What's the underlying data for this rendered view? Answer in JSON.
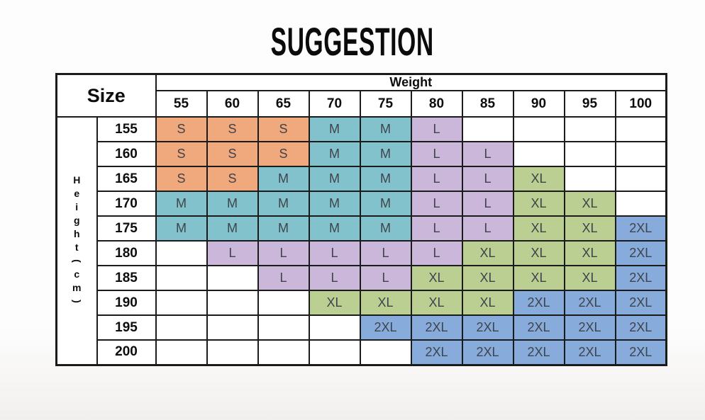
{
  "title": "SUGGESTION",
  "table": {
    "corner_label": "Size",
    "weight_header": "Weight",
    "height_axis_chars": [
      "H",
      "e",
      "i",
      "g",
      "h",
      "t",
      "(",
      "c",
      "m",
      ")"
    ],
    "weight_columns": [
      "55",
      "60",
      "65",
      "70",
      "75",
      "80",
      "85",
      "90",
      "95",
      "100"
    ],
    "rows": [
      {
        "height": "155",
        "sizes": [
          "S",
          "S",
          "S",
          "M",
          "M",
          "L",
          "",
          "",
          "",
          ""
        ]
      },
      {
        "height": "160",
        "sizes": [
          "S",
          "S",
          "S",
          "M",
          "M",
          "L",
          "L",
          "",
          "",
          ""
        ]
      },
      {
        "height": "165",
        "sizes": [
          "S",
          "S",
          "M",
          "M",
          "M",
          "L",
          "L",
          "XL",
          "",
          ""
        ]
      },
      {
        "height": "170",
        "sizes": [
          "M",
          "M",
          "M",
          "M",
          "M",
          "L",
          "L",
          "XL",
          "XL",
          ""
        ]
      },
      {
        "height": "175",
        "sizes": [
          "M",
          "M",
          "M",
          "M",
          "M",
          "L",
          "L",
          "XL",
          "XL",
          "2XL"
        ]
      },
      {
        "height": "180",
        "sizes": [
          "",
          "L",
          "L",
          "L",
          "L",
          "L",
          "XL",
          "XL",
          "XL",
          "2XL"
        ]
      },
      {
        "height": "185",
        "sizes": [
          "",
          "",
          "L",
          "L",
          "L",
          "XL",
          "XL",
          "XL",
          "XL",
          "2XL"
        ]
      },
      {
        "height": "190",
        "sizes": [
          "",
          "",
          "",
          "XL",
          "XL",
          "XL",
          "XL",
          "2XL",
          "2XL",
          "2XL"
        ]
      },
      {
        "height": "195",
        "sizes": [
          "",
          "",
          "",
          "",
          "2XL",
          "2XL",
          "2XL",
          "2XL",
          "2XL",
          "2XL"
        ]
      },
      {
        "height": "200",
        "sizes": [
          "",
          "",
          "",
          "",
          "",
          "2XL",
          "2XL",
          "2XL",
          "2XL",
          "2XL"
        ]
      }
    ]
  },
  "size_colors": {
    "S": "#f0a97c",
    "M": "#82c2cc",
    "L": "#cab7d9",
    "XL": "#bccf92",
    "2XL": "#87abdb"
  },
  "style_colors": {
    "border": "#1b1b1b",
    "header_text": "#0d0d0d",
    "cell_text": "#3f434b",
    "empty_cell": "#ffffff"
  },
  "chart_data": {
    "type": "table",
    "title": "SUGGESTION",
    "x_header": "Weight",
    "y_header": "Height(cm)",
    "x_values": [
      55,
      60,
      65,
      70,
      75,
      80,
      85,
      90,
      95,
      100
    ],
    "y_values": [
      155,
      160,
      165,
      170,
      175,
      180,
      185,
      190,
      195,
      200
    ],
    "legend": [
      "S",
      "M",
      "L",
      "XL",
      "2XL"
    ],
    "matrix": [
      [
        "S",
        "S",
        "S",
        "M",
        "M",
        "L",
        "",
        "",
        "",
        ""
      ],
      [
        "S",
        "S",
        "S",
        "M",
        "M",
        "L",
        "L",
        "",
        "",
        ""
      ],
      [
        "S",
        "S",
        "M",
        "M",
        "M",
        "L",
        "L",
        "XL",
        "",
        ""
      ],
      [
        "M",
        "M",
        "M",
        "M",
        "M",
        "L",
        "L",
        "XL",
        "XL",
        ""
      ],
      [
        "M",
        "M",
        "M",
        "M",
        "M",
        "L",
        "L",
        "XL",
        "XL",
        "2XL"
      ],
      [
        "",
        "L",
        "L",
        "L",
        "L",
        "L",
        "XL",
        "XL",
        "XL",
        "2XL"
      ],
      [
        "",
        "",
        "L",
        "L",
        "L",
        "XL",
        "XL",
        "XL",
        "XL",
        "2XL"
      ],
      [
        "",
        "",
        "",
        "XL",
        "XL",
        "XL",
        "XL",
        "2XL",
        "2XL",
        "2XL"
      ],
      [
        "",
        "",
        "",
        "",
        "2XL",
        "2XL",
        "2XL",
        "2XL",
        "2XL",
        "2XL"
      ],
      [
        "",
        "",
        "",
        "",
        "",
        "2XL",
        "2XL",
        "2XL",
        "2XL",
        "2XL"
      ]
    ]
  }
}
